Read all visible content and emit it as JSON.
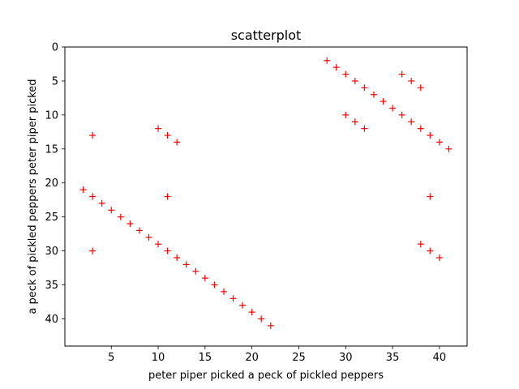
{
  "chart_data": {
    "type": "scatter",
    "title": "scatterplot",
    "xlabel": "peter piper picked a peck of pickled peppers",
    "ylabel": "a peck of pickled peppers peter piper picked",
    "xlim": [
      0.05,
      42.95
    ],
    "ylim": [
      44,
      0
    ],
    "y_inverted": true,
    "x_ticks": [
      5,
      10,
      15,
      20,
      25,
      30,
      35,
      40
    ],
    "y_ticks": [
      0,
      5,
      10,
      15,
      20,
      25,
      30,
      35,
      40
    ],
    "grid": false,
    "marker": "+",
    "color": "#ff0000",
    "series": [
      {
        "x": [
          2,
          3,
          4,
          5,
          6,
          7,
          8,
          9,
          10,
          11,
          12,
          13,
          14,
          15,
          16,
          17,
          18,
          19,
          20,
          21,
          22,
          3,
          3,
          10,
          11,
          12,
          11,
          28,
          29,
          30,
          31,
          32,
          33,
          34,
          35,
          36,
          37,
          38,
          39,
          40,
          41,
          36,
          37,
          38,
          30,
          31,
          32,
          39,
          38,
          39,
          40
        ],
        "y": [
          21,
          22,
          23,
          24,
          25,
          26,
          27,
          28,
          29,
          30,
          31,
          32,
          33,
          34,
          35,
          36,
          37,
          38,
          39,
          40,
          41,
          13,
          30,
          12,
          13,
          14,
          22,
          2,
          3,
          4,
          5,
          6,
          7,
          8,
          9,
          10,
          11,
          12,
          13,
          14,
          15,
          4,
          5,
          6,
          10,
          11,
          12,
          22,
          29,
          30,
          31
        ]
      }
    ]
  }
}
